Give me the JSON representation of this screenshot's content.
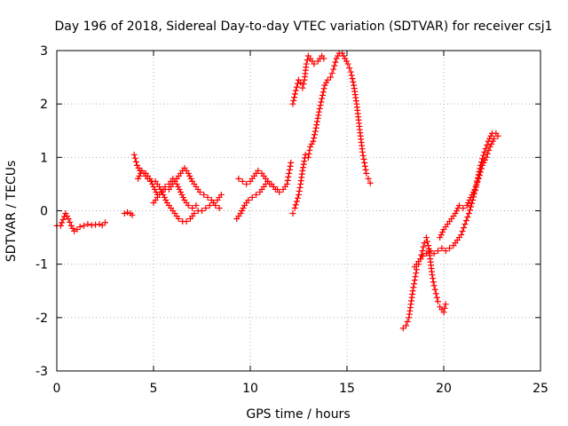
{
  "chart_data": {
    "type": "scatter",
    "title": "Day 196 of 2018, Sidereal Day-to-day VTEC variation (SDTVAR) for receiver csj1",
    "xlabel": "GPS time / hours",
    "ylabel": "SDTVAR / TECUs",
    "xlim": [
      0,
      25
    ],
    "ylim": [
      -3,
      3
    ],
    "xticks": [
      0,
      5,
      10,
      15,
      20,
      25
    ],
    "yticks": [
      -3,
      -2,
      -1,
      0,
      1,
      2,
      3
    ],
    "grid": true,
    "marker": "+",
    "series": [
      {
        "name": "SDTVAR",
        "color": "#ff0000",
        "segments": [
          [
            [
              0.0,
              -0.28
            ],
            [
              0.2,
              -0.28
            ],
            [
              0.45,
              -0.05
            ],
            [
              0.6,
              -0.15
            ],
            [
              0.75,
              -0.28
            ],
            [
              0.9,
              -0.38
            ],
            [
              1.05,
              -0.35
            ],
            [
              1.2,
              -0.3
            ],
            [
              1.4,
              -0.28
            ],
            [
              1.6,
              -0.25
            ],
            [
              1.8,
              -0.27
            ],
            [
              2.0,
              -0.26
            ],
            [
              2.2,
              -0.25
            ],
            [
              2.35,
              -0.27
            ],
            [
              2.5,
              -0.22
            ]
          ],
          [
            [
              3.5,
              -0.05
            ],
            [
              3.65,
              -0.03
            ],
            [
              3.8,
              -0.05
            ],
            [
              3.9,
              -0.08
            ]
          ],
          [
            [
              4.0,
              1.05
            ],
            [
              4.15,
              0.85
            ],
            [
              4.3,
              0.75
            ],
            [
              4.5,
              0.7
            ],
            [
              4.7,
              0.6
            ],
            [
              4.9,
              0.55
            ],
            [
              5.1,
              0.55
            ],
            [
              5.3,
              0.45
            ],
            [
              5.5,
              0.3
            ],
            [
              5.7,
              0.15
            ],
            [
              5.9,
              0.05
            ],
            [
              6.1,
              -0.05
            ],
            [
              6.3,
              -0.15
            ],
            [
              6.5,
              -0.2
            ],
            [
              6.7,
              -0.2
            ],
            [
              6.9,
              -0.15
            ],
            [
              7.1,
              -0.05
            ],
            [
              7.3,
              0.0
            ],
            [
              7.5,
              0.0
            ],
            [
              7.7,
              0.05
            ],
            [
              7.9,
              0.1
            ],
            [
              8.1,
              0.15
            ],
            [
              8.3,
              0.2
            ],
            [
              8.5,
              0.3
            ]
          ],
          [
            [
              4.2,
              0.6
            ],
            [
              4.4,
              0.75
            ],
            [
              4.6,
              0.7
            ],
            [
              4.8,
              0.6
            ],
            [
              5.0,
              0.45
            ],
            [
              5.2,
              0.3
            ],
            [
              5.4,
              0.35
            ],
            [
              5.6,
              0.4
            ],
            [
              5.8,
              0.4
            ],
            [
              6.0,
              0.5
            ],
            [
              6.2,
              0.6
            ],
            [
              6.4,
              0.7
            ],
            [
              6.6,
              0.8
            ],
            [
              6.8,
              0.7
            ],
            [
              7.0,
              0.55
            ],
            [
              7.2,
              0.45
            ],
            [
              7.4,
              0.35
            ],
            [
              7.6,
              0.3
            ],
            [
              7.8,
              0.25
            ],
            [
              8.0,
              0.2
            ],
            [
              8.2,
              0.1
            ],
            [
              8.4,
              0.05
            ]
          ],
          [
            [
              5.0,
              0.15
            ],
            [
              5.2,
              0.25
            ],
            [
              5.4,
              0.35
            ],
            [
              5.6,
              0.45
            ],
            [
              5.8,
              0.5
            ],
            [
              6.0,
              0.6
            ],
            [
              6.2,
              0.5
            ],
            [
              6.4,
              0.35
            ],
            [
              6.6,
              0.2
            ],
            [
              6.8,
              0.1
            ],
            [
              7.0,
              0.05
            ],
            [
              7.2,
              0.1
            ]
          ],
          [
            [
              9.3,
              -0.15
            ],
            [
              9.5,
              -0.05
            ],
            [
              9.7,
              0.1
            ],
            [
              9.9,
              0.2
            ],
            [
              10.1,
              0.25
            ],
            [
              10.3,
              0.3
            ],
            [
              10.5,
              0.35
            ],
            [
              10.7,
              0.45
            ],
            [
              10.9,
              0.55
            ],
            [
              11.1,
              0.5
            ],
            [
              11.3,
              0.4
            ],
            [
              11.5,
              0.35
            ],
            [
              11.7,
              0.4
            ],
            [
              11.9,
              0.5
            ],
            [
              12.0,
              0.7
            ],
            [
              12.1,
              0.9
            ]
          ],
          [
            [
              9.4,
              0.6
            ],
            [
              9.6,
              0.55
            ],
            [
              9.8,
              0.5
            ],
            [
              10.0,
              0.55
            ],
            [
              10.2,
              0.65
            ],
            [
              10.4,
              0.75
            ],
            [
              10.6,
              0.7
            ],
            [
              10.8,
              0.6
            ],
            [
              11.0,
              0.5
            ],
            [
              11.2,
              0.45
            ],
            [
              11.4,
              0.4
            ]
          ],
          [
            [
              12.2,
              2.0
            ],
            [
              12.35,
              2.25
            ],
            [
              12.5,
              2.45
            ],
            [
              12.6,
              2.4
            ],
            [
              12.7,
              2.3
            ],
            [
              12.8,
              2.45
            ],
            [
              12.9,
              2.75
            ],
            [
              13.0,
              2.9
            ],
            [
              13.1,
              2.85
            ],
            [
              13.3,
              2.75
            ],
            [
              13.5,
              2.8
            ],
            [
              13.7,
              2.9
            ],
            [
              13.8,
              2.85
            ]
          ],
          [
            [
              12.2,
              -0.05
            ],
            [
              12.3,
              0.05
            ],
            [
              12.5,
              0.3
            ],
            [
              12.6,
              0.5
            ],
            [
              12.7,
              0.75
            ],
            [
              12.85,
              1.05
            ],
            [
              13.0,
              1.0
            ],
            [
              13.1,
              1.2
            ],
            [
              13.25,
              1.3
            ],
            [
              13.4,
              1.55
            ],
            [
              13.55,
              1.85
            ],
            [
              13.7,
              2.1
            ],
            [
              13.85,
              2.35
            ],
            [
              14.0,
              2.45
            ],
            [
              14.15,
              2.5
            ],
            [
              14.3,
              2.65
            ],
            [
              14.45,
              2.85
            ],
            [
              14.6,
              2.95
            ],
            [
              14.75,
              2.95
            ],
            [
              14.9,
              2.85
            ],
            [
              15.05,
              2.75
            ],
            [
              15.2,
              2.6
            ],
            [
              15.35,
              2.35
            ],
            [
              15.5,
              2.0
            ],
            [
              15.6,
              1.7
            ],
            [
              15.7,
              1.4
            ],
            [
              15.8,
              1.1
            ],
            [
              15.9,
              0.9
            ],
            [
              16.0,
              0.7
            ],
            [
              16.1,
              0.6
            ],
            [
              16.2,
              0.52
            ]
          ],
          [
            [
              17.9,
              -2.2
            ],
            [
              18.05,
              -2.15
            ],
            [
              18.2,
              -2.0
            ],
            [
              18.3,
              -1.75
            ],
            [
              18.4,
              -1.5
            ],
            [
              18.5,
              -1.3
            ],
            [
              18.6,
              -1.1
            ],
            [
              18.7,
              -1.0
            ],
            [
              18.8,
              -0.9
            ],
            [
              18.9,
              -0.75
            ],
            [
              19.0,
              -0.6
            ],
            [
              19.1,
              -0.5
            ],
            [
              19.2,
              -0.65
            ],
            [
              19.3,
              -0.9
            ],
            [
              19.4,
              -1.2
            ],
            [
              19.5,
              -1.4
            ],
            [
              19.6,
              -1.55
            ],
            [
              19.7,
              -1.7
            ],
            [
              19.8,
              -1.8
            ],
            [
              19.9,
              -1.85
            ],
            [
              20.0,
              -1.9
            ],
            [
              20.1,
              -1.75
            ]
          ],
          [
            [
              18.5,
              -1.05
            ],
            [
              18.7,
              -0.95
            ],
            [
              18.9,
              -0.85
            ],
            [
              19.1,
              -0.8
            ],
            [
              19.3,
              -0.75
            ],
            [
              19.5,
              -0.8
            ],
            [
              19.7,
              -0.75
            ],
            [
              19.9,
              -0.7
            ],
            [
              20.1,
              -0.75
            ],
            [
              20.3,
              -0.7
            ],
            [
              20.5,
              -0.65
            ],
            [
              20.7,
              -0.55
            ],
            [
              20.9,
              -0.45
            ],
            [
              21.1,
              -0.25
            ],
            [
              21.3,
              -0.05
            ],
            [
              21.5,
              0.2
            ],
            [
              21.7,
              0.5
            ],
            [
              21.9,
              0.85
            ],
            [
              22.1,
              1.1
            ],
            [
              22.3,
              1.3
            ],
            [
              22.5,
              1.45
            ],
            [
              22.7,
              1.45
            ]
          ],
          [
            [
              19.8,
              -0.5
            ],
            [
              20.0,
              -0.35
            ],
            [
              20.2,
              -0.25
            ],
            [
              20.4,
              -0.15
            ],
            [
              20.6,
              -0.05
            ],
            [
              20.8,
              0.1
            ],
            [
              21.0,
              0.05
            ],
            [
              21.2,
              0.1
            ],
            [
              21.4,
              0.25
            ],
            [
              21.6,
              0.4
            ],
            [
              21.8,
              0.6
            ],
            [
              22.0,
              0.85
            ],
            [
              22.2,
              1.0
            ],
            [
              22.4,
              1.2
            ],
            [
              22.6,
              1.35
            ],
            [
              22.8,
              1.4
            ]
          ]
        ]
      }
    ]
  }
}
